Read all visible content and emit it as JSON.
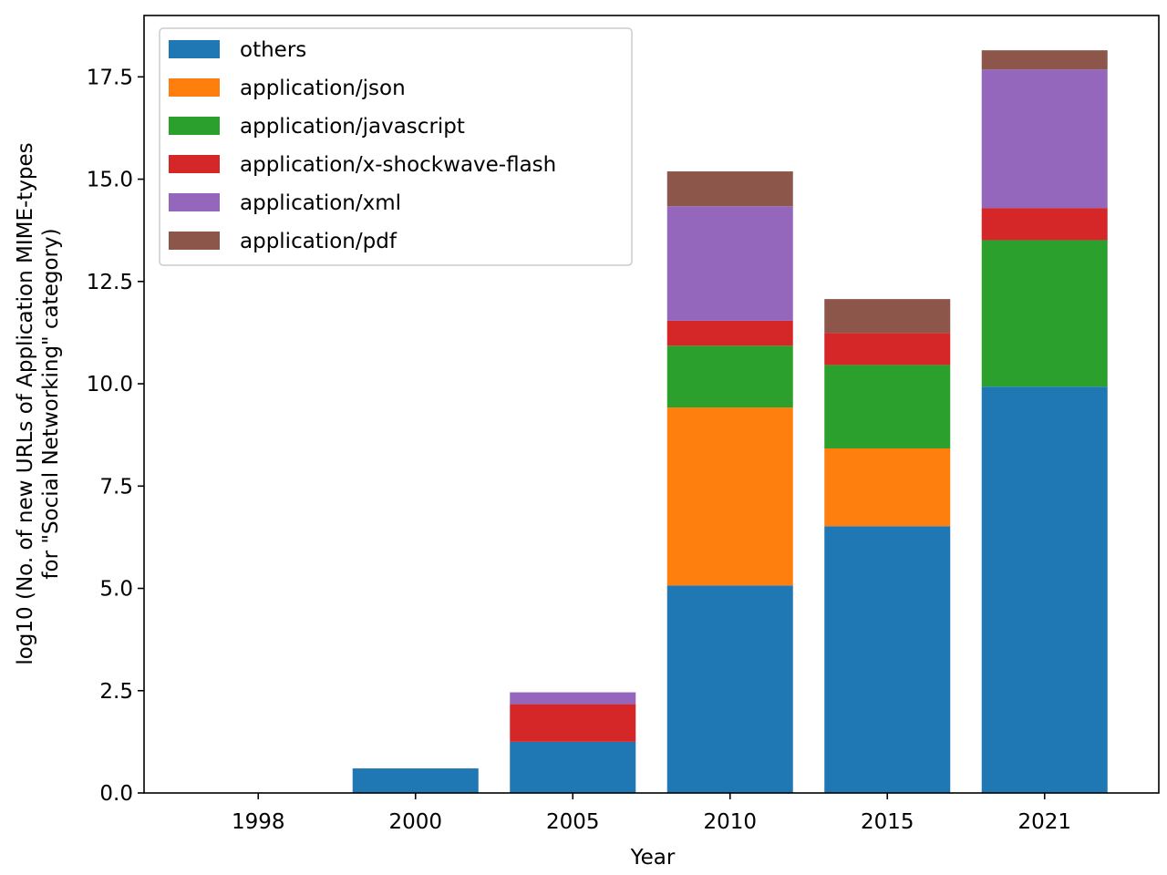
{
  "chart_data": {
    "type": "bar",
    "stacked": true,
    "title": "",
    "xlabel": "Year",
    "ylabel_lines": [
      "log10 (No. of new URLs of Application MIME-types",
      "for \"Social Networking\" category)"
    ],
    "categories": [
      "1998",
      "2000",
      "2005",
      "2010",
      "2015",
      "2021"
    ],
    "ylim": [
      0,
      19
    ],
    "yticks": [
      "0.0",
      "2.5",
      "5.0",
      "7.5",
      "10.0",
      "12.5",
      "15.0",
      "17.5"
    ],
    "ytick_values": [
      0,
      2.5,
      5,
      7.5,
      10,
      12.5,
      15,
      17.5
    ],
    "grid": false,
    "legend_position": "top-left",
    "series": [
      {
        "name": "others",
        "color": "#1f77b4",
        "values": [
          0,
          0.6,
          1.25,
          5.07,
          6.52,
          9.93
        ]
      },
      {
        "name": "application/json",
        "color": "#ff7f0e",
        "values": [
          0,
          0,
          0,
          4.35,
          1.9,
          0
        ]
      },
      {
        "name": "application/javascript",
        "color": "#2ca02c",
        "values": [
          0,
          0,
          0,
          1.51,
          2.04,
          3.58
        ]
      },
      {
        "name": "application/x-shockwave-flash",
        "color": "#d62728",
        "values": [
          0,
          0,
          0.92,
          0.61,
          0.78,
          0.78
        ]
      },
      {
        "name": "application/xml",
        "color": "#9467bd",
        "values": [
          0,
          0,
          0.29,
          2.8,
          0,
          3.39
        ]
      },
      {
        "name": "application/pdf",
        "color": "#8c564b",
        "values": [
          0,
          0,
          0,
          0.85,
          0.83,
          0.47
        ]
      }
    ]
  }
}
